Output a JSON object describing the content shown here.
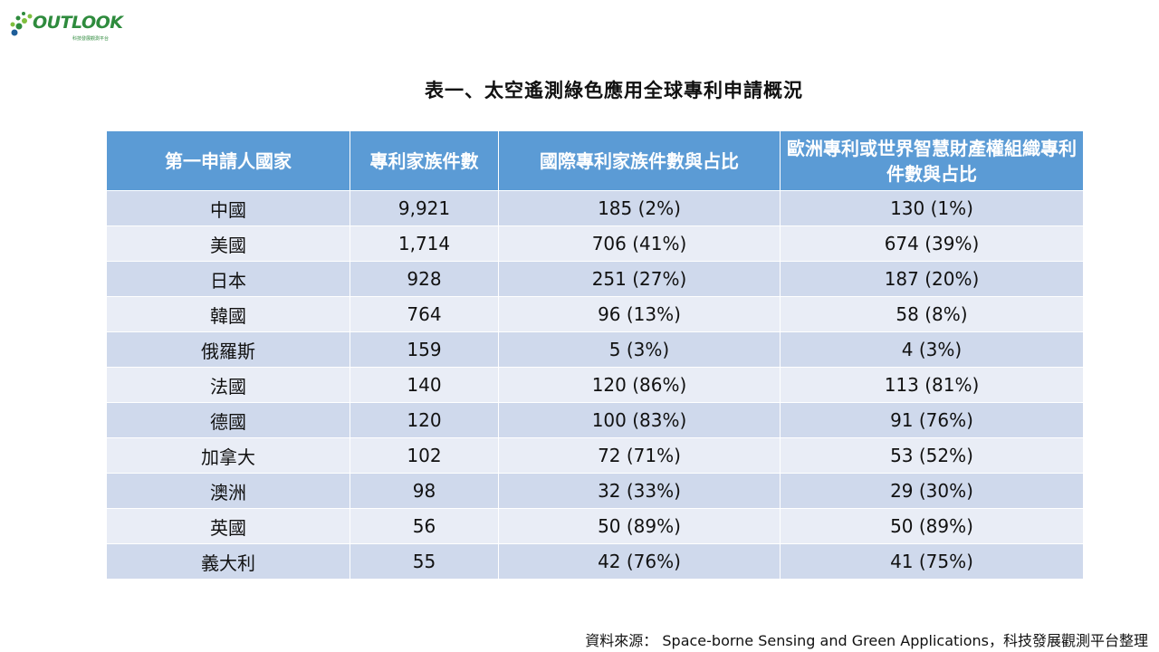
{
  "logo": {
    "text": "OUTLOOK",
    "subtitle": "科技發展觀測平台",
    "colors": [
      "#2e8b3d",
      "#7fbf3f",
      "#1f5e99"
    ]
  },
  "title": "表一、太空遙測綠色應用全球專利申請概況",
  "table": {
    "headers": [
      "第一申請人國家",
      "專利家族件數",
      "國際專利家族件數與占比",
      "歐洲專利或世界智慧財產權組織專利件數與占比"
    ],
    "rows": [
      [
        "中國",
        "9,921",
        "185 (2%)",
        "130 (1%)"
      ],
      [
        "美國",
        "1,714",
        "706 (41%)",
        "674 (39%)"
      ],
      [
        "日本",
        "928",
        "251 (27%)",
        "187 (20%)"
      ],
      [
        "韓國",
        "764",
        "96 (13%)",
        "58 (8%)"
      ],
      [
        "俄羅斯",
        "159",
        "5 (3%)",
        "4 (3%)"
      ],
      [
        "法國",
        "140",
        "120 (86%)",
        "113 (81%)"
      ],
      [
        "德國",
        "120",
        "100 (83%)",
        "91 (76%)"
      ],
      [
        "加拿大",
        "102",
        "72 (71%)",
        "53 (52%)"
      ],
      [
        "澳洲",
        "98",
        "32 (33%)",
        "29 (30%)"
      ],
      [
        "英國",
        "56",
        "50 (89%)",
        "50 (89%)"
      ],
      [
        "義大利",
        "55",
        "42 (76%)",
        "41 (75%)"
      ]
    ]
  },
  "source": "資料來源： Space-borne Sensing and Green Applications，科技發展觀測平台整理",
  "colors": {
    "header_bg": "#5b9bd5",
    "row_dark": "#cfd9ec",
    "row_light": "#e9edf6"
  }
}
